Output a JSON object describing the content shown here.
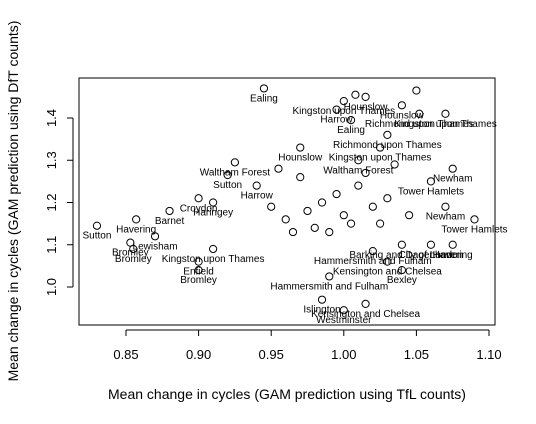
{
  "chart_data": {
    "type": "scatter",
    "title": "",
    "xlabel": "Mean change in cycles (GAM prediction using TfL counts)",
    "ylabel": "Mean change in cycles (GAM prediction using DfT counts)",
    "xlim": [
      0.82,
      1.1
    ],
    "ylim": [
      0.91,
      1.5
    ],
    "x_ticks": [
      0.85,
      0.9,
      0.95,
      1.0,
      1.05,
      1.1
    ],
    "x_tick_labels": [
      "0.85",
      "0.90",
      "0.95",
      "1.00",
      "1.05",
      "1.10"
    ],
    "y_ticks": [
      1.0,
      1.1,
      1.2,
      1.3,
      1.4
    ],
    "y_tick_labels": [
      "1.0",
      "1.1",
      "1.2",
      "1.3",
      "1.4"
    ],
    "grid": false,
    "legend": "none",
    "points": [
      {
        "x": 0.945,
        "y": 1.47,
        "label": "Ealing"
      },
      {
        "x": 1.05,
        "y": 1.465,
        "label": ""
      },
      {
        "x": 1.008,
        "y": 1.455,
        "label": ""
      },
      {
        "x": 1.015,
        "y": 1.45,
        "label": "Hounslow"
      },
      {
        "x": 1.04,
        "y": 1.43,
        "label": "Hounslow"
      },
      {
        "x": 1.0,
        "y": 1.44,
        "label": "Kingston upon Thames"
      },
      {
        "x": 0.995,
        "y": 1.42,
        "label": "Harrow"
      },
      {
        "x": 1.052,
        "y": 1.41,
        "label": "Richmond upon Thames"
      },
      {
        "x": 1.07,
        "y": 1.41,
        "label": "Kingston upon Thames"
      },
      {
        "x": 1.005,
        "y": 1.395,
        "label": "Ealing"
      },
      {
        "x": 1.03,
        "y": 1.36,
        "label": "Richmond upon Thames"
      },
      {
        "x": 0.97,
        "y": 1.33,
        "label": "Hounslow"
      },
      {
        "x": 1.025,
        "y": 1.33,
        "label": "Kingston upon Thames"
      },
      {
        "x": 0.925,
        "y": 1.295,
        "label": "Waltham Forest"
      },
      {
        "x": 1.01,
        "y": 1.3,
        "label": "Waltham Forest"
      },
      {
        "x": 0.92,
        "y": 1.265,
        "label": "Sutton"
      },
      {
        "x": 1.075,
        "y": 1.28,
        "label": "Newham"
      },
      {
        "x": 0.94,
        "y": 1.24,
        "label": "Harrow"
      },
      {
        "x": 1.06,
        "y": 1.25,
        "label": "Tower Hamlets"
      },
      {
        "x": 0.9,
        "y": 1.21,
        "label": "Croydon"
      },
      {
        "x": 0.88,
        "y": 1.18,
        "label": "Barnet"
      },
      {
        "x": 0.91,
        "y": 1.2,
        "label": "Haringey"
      },
      {
        "x": 1.07,
        "y": 1.19,
        "label": "Newham"
      },
      {
        "x": 1.09,
        "y": 1.16,
        "label": "Tower Hamlets"
      },
      {
        "x": 0.83,
        "y": 1.145,
        "label": "Sutton"
      },
      {
        "x": 0.857,
        "y": 1.16,
        "label": "Havering"
      },
      {
        "x": 0.87,
        "y": 1.12,
        "label": "Lewisham"
      },
      {
        "x": 0.853,
        "y": 1.105,
        "label": "Bromley"
      },
      {
        "x": 0.91,
        "y": 1.09,
        "label": "Kingston upon Thames"
      },
      {
        "x": 0.855,
        "y": 1.09,
        "label": "Bromley"
      },
      {
        "x": 0.9,
        "y": 1.06,
        "label": "Enfield"
      },
      {
        "x": 0.9,
        "y": 1.04,
        "label": "Bromley"
      },
      {
        "x": 1.04,
        "y": 1.1,
        "label": "Barking and Dagenham"
      },
      {
        "x": 1.06,
        "y": 1.1,
        "label": "City of London"
      },
      {
        "x": 1.075,
        "y": 1.1,
        "label": "Havering"
      },
      {
        "x": 1.02,
        "y": 1.085,
        "label": "Hammersmith and Fulham"
      },
      {
        "x": 1.03,
        "y": 1.06,
        "label": "Kensington and Chelsea"
      },
      {
        "x": 1.04,
        "y": 1.04,
        "label": "Bexley"
      },
      {
        "x": 0.99,
        "y": 1.025,
        "label": "Hammersmith and Fulham"
      },
      {
        "x": 0.985,
        "y": 0.97,
        "label": "Islington"
      },
      {
        "x": 1.015,
        "y": 0.96,
        "label": "Kensington and Chelsea"
      },
      {
        "x": 1.0,
        "y": 0.945,
        "label": "Westminster"
      },
      {
        "x": 0.96,
        "y": 1.16,
        "label": ""
      },
      {
        "x": 0.975,
        "y": 1.18,
        "label": ""
      },
      {
        "x": 0.985,
        "y": 1.2,
        "label": ""
      },
      {
        "x": 0.995,
        "y": 1.22,
        "label": ""
      },
      {
        "x": 1.0,
        "y": 1.17,
        "label": ""
      },
      {
        "x": 1.01,
        "y": 1.24,
        "label": ""
      },
      {
        "x": 1.02,
        "y": 1.19,
        "label": ""
      },
      {
        "x": 1.03,
        "y": 1.21,
        "label": ""
      },
      {
        "x": 1.045,
        "y": 1.17,
        "label": ""
      },
      {
        "x": 0.97,
        "y": 1.26,
        "label": ""
      },
      {
        "x": 0.98,
        "y": 1.14,
        "label": ""
      },
      {
        "x": 0.99,
        "y": 1.13,
        "label": ""
      },
      {
        "x": 1.005,
        "y": 1.15,
        "label": ""
      },
      {
        "x": 1.015,
        "y": 1.27,
        "label": ""
      },
      {
        "x": 0.95,
        "y": 1.19,
        "label": ""
      },
      {
        "x": 0.965,
        "y": 1.13,
        "label": ""
      },
      {
        "x": 1.025,
        "y": 1.15,
        "label": ""
      },
      {
        "x": 1.035,
        "y": 1.29,
        "label": ""
      },
      {
        "x": 0.955,
        "y": 1.28,
        "label": ""
      }
    ]
  }
}
